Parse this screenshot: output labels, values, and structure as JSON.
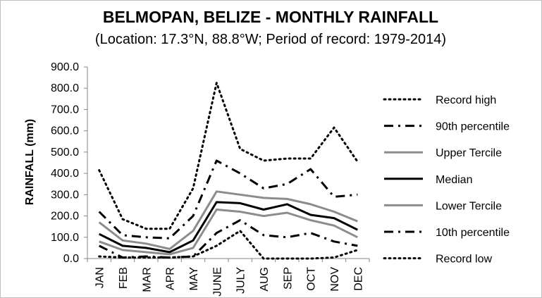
{
  "chart_data": {
    "type": "line",
    "title": "BELMOPAN, BELIZE - MONTHLY RAINFALL",
    "subtitle": "(Location: 17.3°N, 88.8°W; Period of record: 1979-2014)",
    "ylabel": "RAINFALL (mm)",
    "xlabel": "",
    "ylim": [
      0,
      900
    ],
    "yticks": [
      "0.0",
      "100.0",
      "200.0",
      "300.0",
      "400.0",
      "500.0",
      "600.0",
      "700.0",
      "800.0",
      "900.0"
    ],
    "grid": false,
    "legend_position": "right",
    "categories": [
      "JAN",
      "FEB",
      "MAR",
      "APR",
      "MAY",
      "JUNE",
      "JULY",
      "AUG",
      "SEP",
      "OCT",
      "NOV",
      "DEC"
    ],
    "series": [
      {
        "name": "Record high",
        "style": "dotted",
        "color": "#000000",
        "values": [
          415,
          185,
          140,
          140,
          330,
          825,
          515,
          460,
          470,
          470,
          615,
          455
        ]
      },
      {
        "name": "90th percentile",
        "style": "dashdot",
        "color": "#000000",
        "values": [
          220,
          110,
          100,
          95,
          200,
          460,
          400,
          330,
          350,
          420,
          290,
          300
        ]
      },
      {
        "name": "Upper Tercile",
        "style": "solid",
        "color": "#8c8c8c",
        "values": [
          170,
          85,
          70,
          45,
          130,
          315,
          300,
          285,
          280,
          255,
          220,
          175
        ]
      },
      {
        "name": "Median",
        "style": "solid",
        "color": "#000000",
        "values": [
          115,
          60,
          50,
          30,
          85,
          265,
          260,
          230,
          255,
          205,
          190,
          135
        ]
      },
      {
        "name": "Lower Tercile",
        "style": "solid",
        "color": "#8c8c8c",
        "values": [
          80,
          40,
          30,
          20,
          50,
          230,
          220,
          200,
          215,
          180,
          155,
          100
        ]
      },
      {
        "name": "10th percentile",
        "style": "dashdot",
        "color": "#000000",
        "values": [
          60,
          5,
          10,
          5,
          10,
          120,
          180,
          110,
          100,
          120,
          80,
          60
        ]
      },
      {
        "name": "Record low",
        "style": "dotted",
        "color": "#000000",
        "values": [
          10,
          5,
          5,
          5,
          10,
          60,
          130,
          0,
          0,
          0,
          5,
          40
        ]
      }
    ]
  }
}
